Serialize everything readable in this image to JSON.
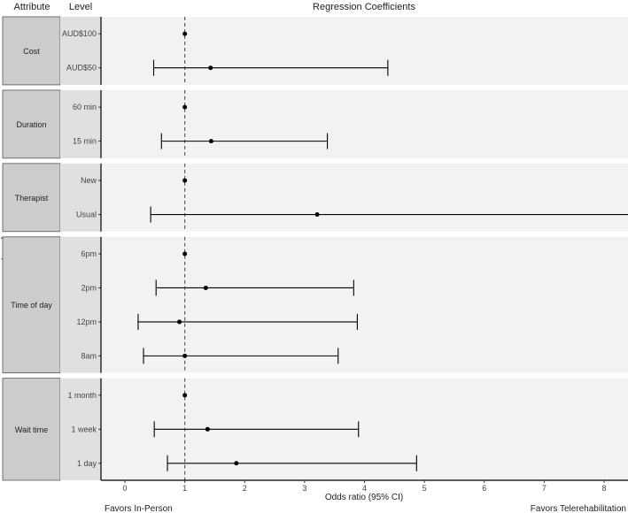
{
  "chart_data": {
    "type": "forest",
    "title": "Regression Coefficients",
    "strip_headers": [
      "Attribute",
      "Level"
    ],
    "ylabel": "Level",
    "xlabel": "Odds ratio (95% CI)",
    "xlim": [
      -0.4,
      8.4
    ],
    "xticks": [
      0,
      1,
      2,
      3,
      4,
      5,
      6,
      7,
      8
    ],
    "reference_line": 1,
    "annotations": {
      "left": "Favors In-Person",
      "right": "Favors Telerehabilitation"
    },
    "colors": {
      "strip": "#cccccc",
      "level_strip": "#e0e0e0",
      "panel": "#f2f2f2",
      "point": "#000000"
    },
    "groups": [
      {
        "name": "Cost",
        "levels": [
          {
            "label": "AUD$100",
            "or": 1
          },
          {
            "label": "AUD$50",
            "or": 1.43,
            "lo": 0.48,
            "hi": 4.39
          }
        ]
      },
      {
        "name": "Duration",
        "levels": [
          {
            "label": "60 min",
            "or": 1
          },
          {
            "label": "15 min",
            "or": 1.44,
            "lo": 0.61,
            "hi": 3.38
          }
        ]
      },
      {
        "name": "Therapist",
        "levels": [
          {
            "label": "New",
            "or": 1
          },
          {
            "label": "Usual",
            "or": 3.21,
            "lo": 0.43,
            "hi": 9.0
          }
        ]
      },
      {
        "name": "Time of day",
        "levels": [
          {
            "label": "6pm",
            "or": 1
          },
          {
            "label": "2pm",
            "or": 1.35,
            "lo": 0.52,
            "hi": 3.82
          },
          {
            "label": "12pm",
            "or": 0.91,
            "lo": 0.22,
            "hi": 3.88
          },
          {
            "label": "8am",
            "or": 1.0,
            "lo": 0.31,
            "hi": 3.56
          }
        ]
      },
      {
        "name": "Wait time",
        "levels": [
          {
            "label": "1 month",
            "or": 1
          },
          {
            "label": "1 week",
            "or": 1.38,
            "lo": 0.49,
            "hi": 3.9
          },
          {
            "label": "1 day",
            "or": 1.86,
            "lo": 0.71,
            "hi": 4.87
          }
        ]
      }
    ]
  }
}
